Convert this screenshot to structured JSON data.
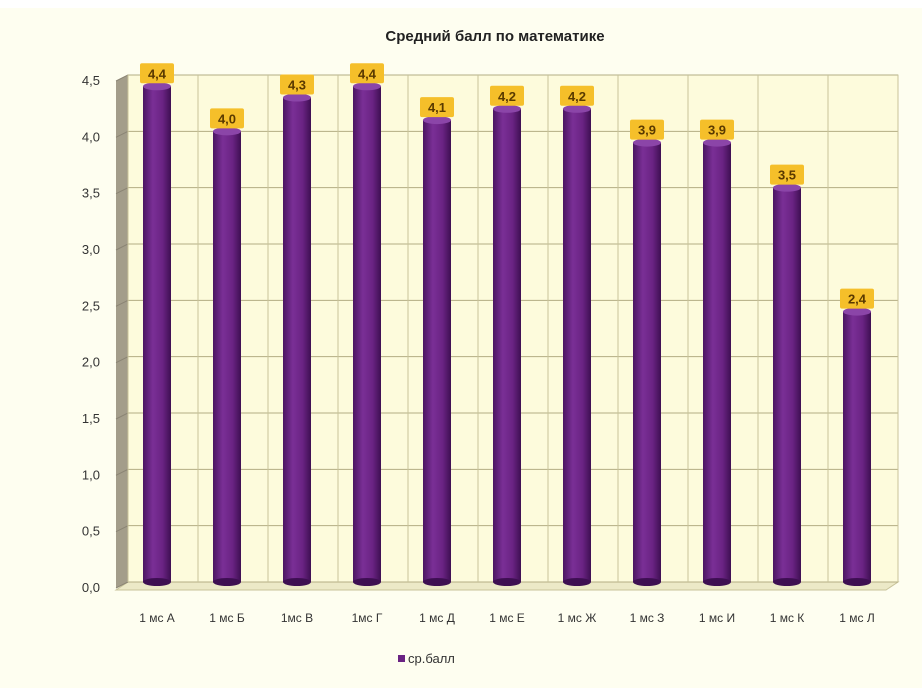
{
  "chart_data": {
    "type": "bar",
    "title": "Средний балл по математике",
    "categories": [
      "1 мс А",
      "1 мс Б",
      "1мс В",
      "1мс Г",
      "1 мс Д",
      "1 мс Е",
      "1 мс Ж",
      "1 мс З",
      "1 мс И",
      "1 мс К",
      "1 мс Л"
    ],
    "series": [
      {
        "name": "ср.балл",
        "values": [
          4.4,
          4.0,
          4.3,
          4.4,
          4.1,
          4.2,
          4.2,
          3.9,
          3.9,
          3.5,
          2.4
        ],
        "data_labels": [
          "4,4",
          "4,0",
          "4,3",
          "4,4",
          "4,1",
          "4,2",
          "4,2",
          "3,9",
          "3,9",
          "3,5",
          "2,4"
        ],
        "color": "#6a2383"
      }
    ],
    "y_ticks": [
      "0,0",
      "0,5",
      "1,0",
      "1,5",
      "2,0",
      "2,5",
      "3,0",
      "3,5",
      "4,0",
      "4,5"
    ],
    "ylim": [
      0,
      4.5
    ],
    "grid": true,
    "legend_position": "bottom",
    "label_color": "#f5bf2a",
    "plot_background": "#fdfbdc"
  }
}
